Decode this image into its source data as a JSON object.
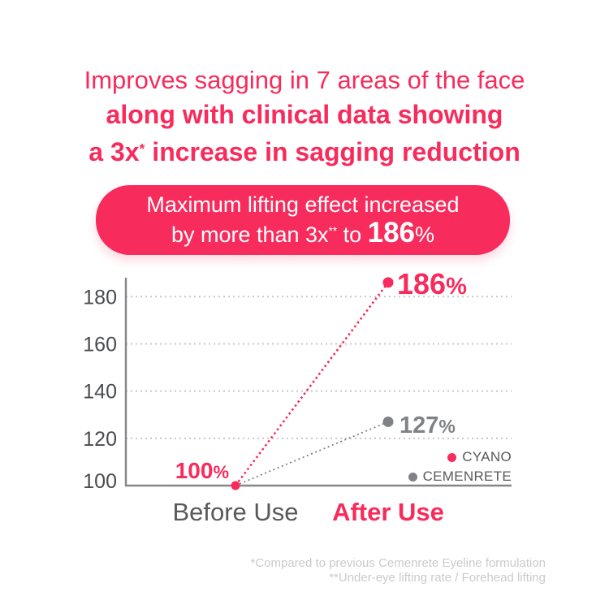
{
  "headline": {
    "line1": "Improves sagging in 7 areas of the face",
    "line2": "along with clinical data showing",
    "line3_prefix": "a 3x",
    "line3_sup": "*",
    "line3_suffix": " increase in sagging reduction"
  },
  "badge": {
    "line1": "Maximum lifting effect increased",
    "line2_prefix": "by more than 3x",
    "line2_sup": "**",
    "line2_mid": " to ",
    "line2_value": "186",
    "line2_unit": "%"
  },
  "chart_data": {
    "type": "line",
    "categories": [
      "Before Use",
      "After Use"
    ],
    "x_label_emphasis": "After Use",
    "series": [
      {
        "name": "CYANO",
        "color": "#F72B5C",
        "values": [
          100,
          186
        ],
        "point_labels": [
          "100%",
          "186%"
        ]
      },
      {
        "name": "CEMENRETE",
        "color": "#808285",
        "values": [
          100,
          127
        ],
        "point_labels": [
          null,
          "127%"
        ]
      }
    ],
    "yticks": [
      100,
      120,
      140,
      160,
      180
    ],
    "ylim": [
      100,
      188
    ],
    "grid": "horizontal-dotted",
    "line_style": "dotted",
    "legend_position": "inside-bottom-right"
  },
  "footnotes": {
    "line1": "*Compared to previous Cemenrete Eyeline formulation",
    "line2": "**Under-eye lifting rate / Forehead lifting"
  },
  "colors": {
    "accent_pink": "#F72B5C",
    "series_gray": "#808285",
    "text_dark": "#58595B",
    "tick_gray": "#4A4B4D",
    "grid_gray": "#C6C7C9",
    "footnote_gray": "#C9CACC"
  }
}
